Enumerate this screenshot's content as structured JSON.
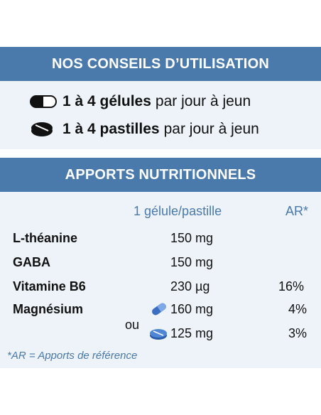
{
  "usage": {
    "title": "NOS CONSEILS D’UTILISATION",
    "lines": [
      {
        "icon": "capsule-icon",
        "bold": "1 à 4 gélules",
        "rest": "par jour à jeun"
      },
      {
        "icon": "tablet-icon",
        "bold": "1 à 4 pastilles",
        "rest": "par jour à jeun"
      }
    ]
  },
  "nutrition": {
    "title": "APPORTS NUTRITIONNELS",
    "col_dose": "1 gélule/pastille",
    "col_ar": "AR*",
    "rows": [
      {
        "name": "L-théanine",
        "qty": "150 mg",
        "ar": ""
      },
      {
        "name": "GABA",
        "qty": "150 mg",
        "ar": ""
      },
      {
        "name": "Vitamine B6",
        "qty": "230 µg",
        "ar": "16%"
      },
      {
        "name": "Magnésium",
        "qty": "160 mg",
        "ar": "4%",
        "icon": "capsule-icon"
      },
      {
        "name": "",
        "or_label": "ou",
        "qty": "125 mg",
        "ar": "3%",
        "icon": "tablet-icon"
      }
    ],
    "footnote": "*AR = Apports de référence"
  },
  "colors": {
    "band": "#4a79ab",
    "panel": "#edf3f8",
    "accent_icon": "#3c6fc4"
  }
}
